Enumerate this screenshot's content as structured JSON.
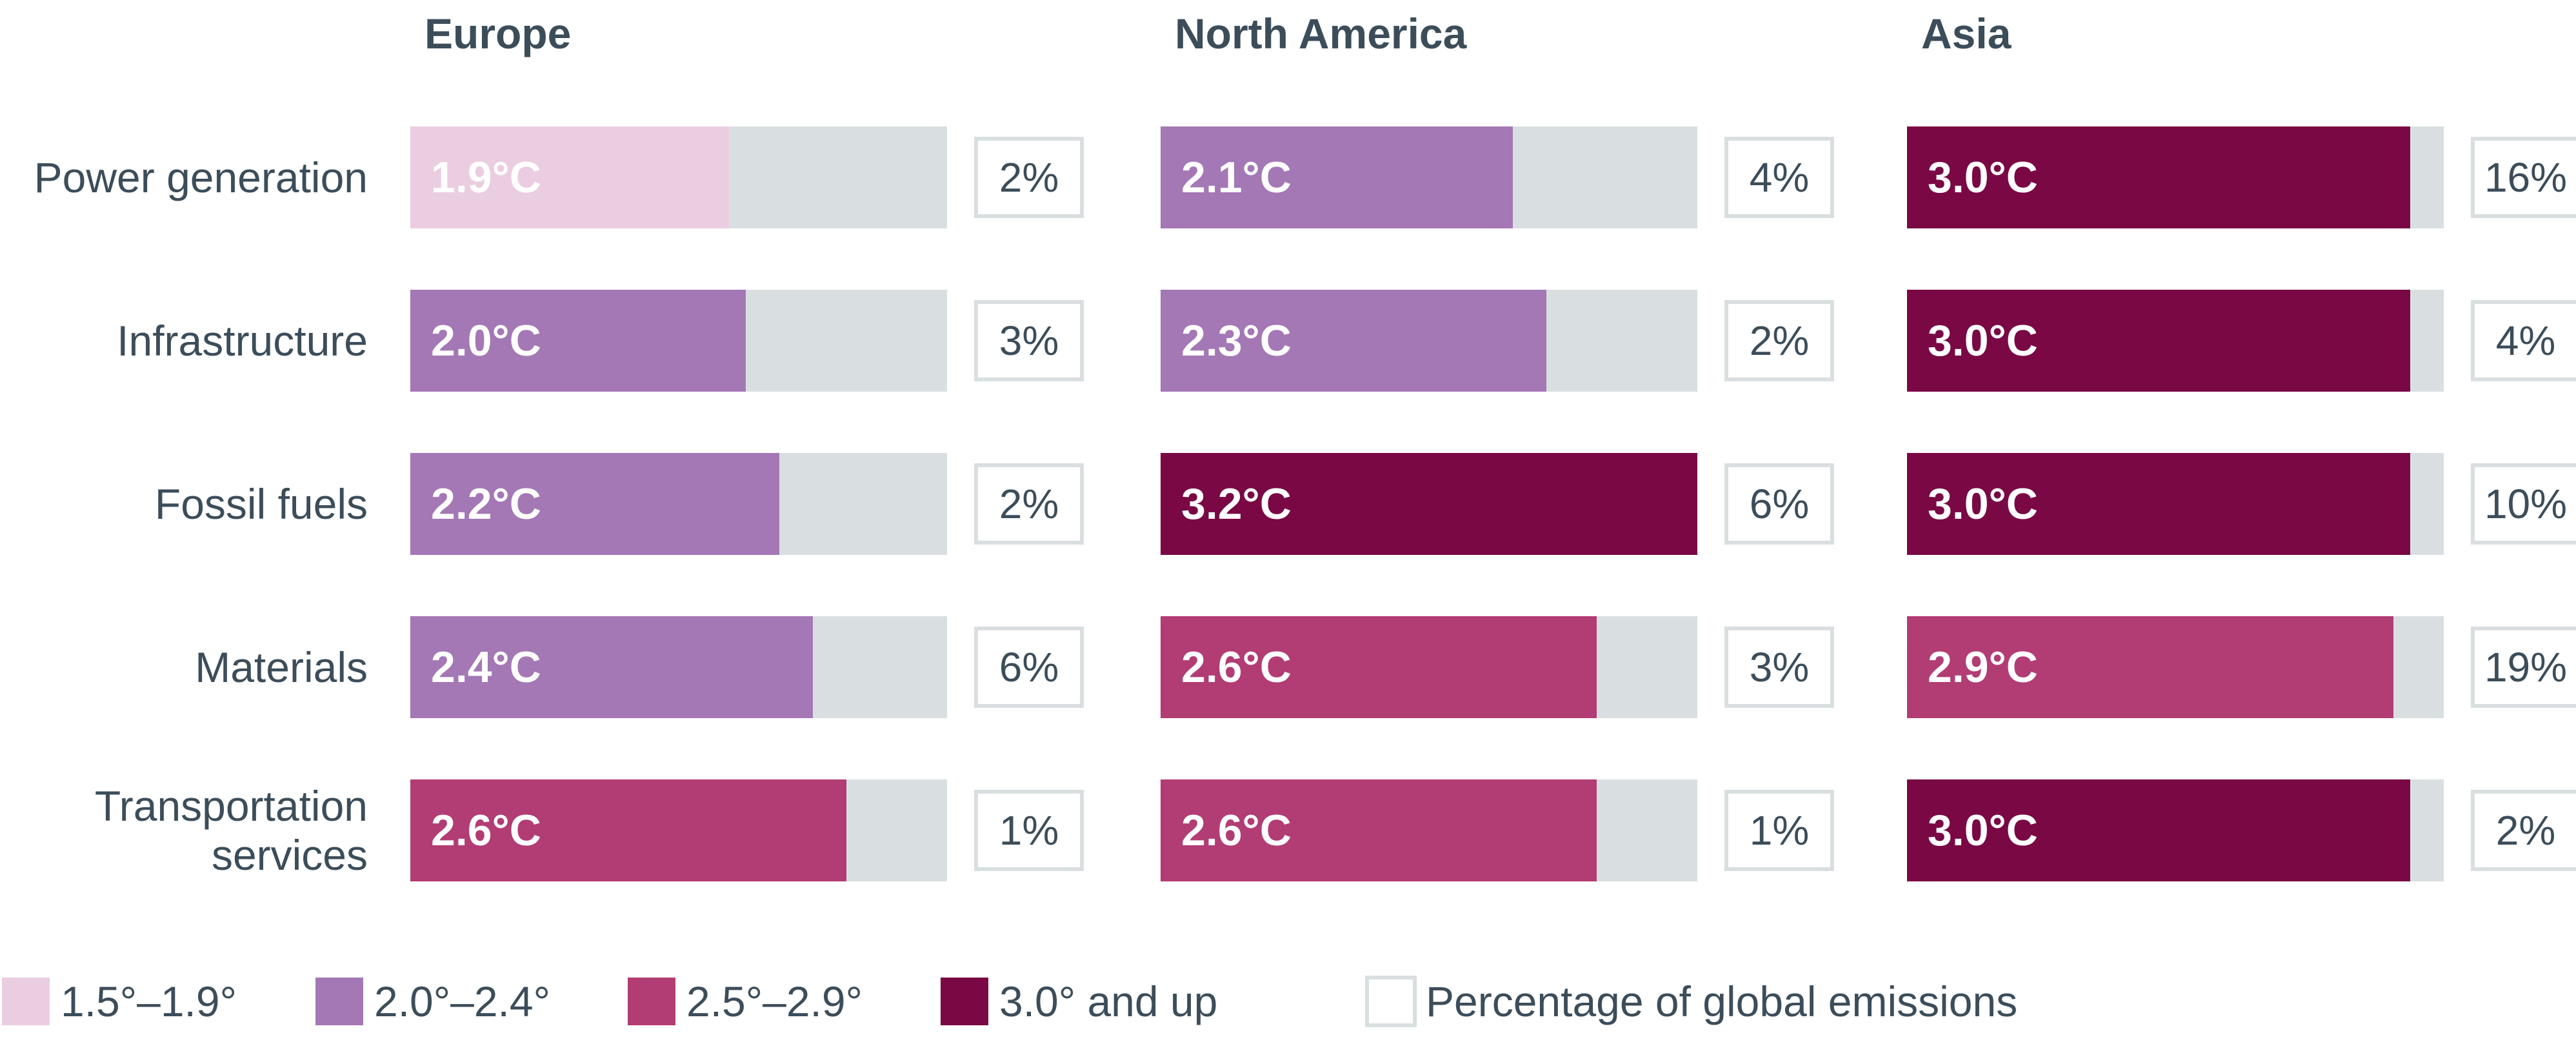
{
  "chart_data": {
    "type": "bar",
    "orientation": "horizontal",
    "categories": [
      "Power generation",
      "Infrastructure",
      "Fossil fuels",
      "Materials",
      "Transportation services"
    ],
    "category_lines": [
      [
        "Power generation"
      ],
      [
        "Infrastructure"
      ],
      [
        "Fossil fuels"
      ],
      [
        "Materials"
      ],
      [
        "Transportation",
        "services"
      ]
    ],
    "bar_max_temperature": 3.2,
    "panels": [
      {
        "title": "Europe",
        "temperatures": [
          1.9,
          2.0,
          2.2,
          2.4,
          2.6
        ],
        "temperature_labels": [
          "1.9°C",
          "2.0°C",
          "2.2°C",
          "2.4°C",
          "2.6°C"
        ],
        "emission_shares": [
          "2%",
          "3%",
          "2%",
          "6%",
          "1%"
        ]
      },
      {
        "title": "North America",
        "temperatures": [
          2.1,
          2.3,
          3.2,
          2.6,
          2.6
        ],
        "temperature_labels": [
          "2.1°C",
          "2.3°C",
          "3.2°C",
          "2.6°C",
          "2.6°C"
        ],
        "emission_shares": [
          "4%",
          "2%",
          "6%",
          "3%",
          "1%"
        ]
      },
      {
        "title": "Asia",
        "temperatures": [
          3.0,
          3.0,
          3.0,
          2.9,
          3.0
        ],
        "temperature_labels": [
          "3.0°C",
          "3.0°C",
          "3.0°C",
          "2.9°C",
          "3.0°C"
        ],
        "emission_shares": [
          "16%",
          "4%",
          "10%",
          "19%",
          "2%"
        ]
      }
    ],
    "legend": {
      "placement": "bottom",
      "items": [
        {
          "label": "1.5°–1.9°",
          "color": "#ebcde1",
          "min": 1.5,
          "max": 1.9
        },
        {
          "label": "2.0°–2.4°",
          "color": "#a477b5",
          "min": 2.0,
          "max": 2.4
        },
        {
          "label": "2.5°–2.9°",
          "color": "#b23c74",
          "min": 2.5,
          "max": 2.9
        },
        {
          "label": "3.0° and up",
          "color": "#790845",
          "min": 3.0,
          "max": 99
        },
        {
          "label": "Percentage of global emissions",
          "color": "#ffffff",
          "outline": "#d9dfe0"
        }
      ]
    },
    "colors": {
      "track": "#d9dfe0",
      "text": "#3c4d5a",
      "box_border": "#d9dfe0",
      "bar_text": "#ffffff"
    }
  }
}
